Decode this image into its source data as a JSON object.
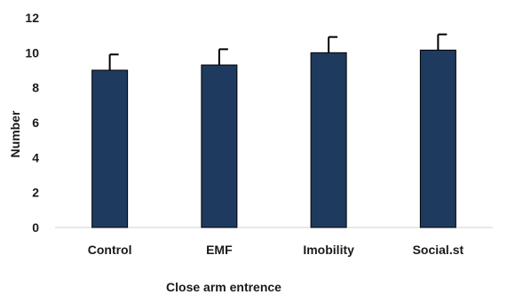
{
  "chart_data": {
    "type": "bar",
    "categories": [
      "Control",
      "EMF",
      "Imobility",
      "Social.st"
    ],
    "values": [
      9.0,
      9.3,
      10.0,
      10.15
    ],
    "errors": [
      0.9,
      0.9,
      0.9,
      0.9
    ],
    "title": "",
    "xlabel": "Close arm entrence",
    "ylabel": "Number",
    "ylim": [
      0,
      12
    ],
    "yticks": [
      "0",
      "2",
      "4",
      "6",
      "8",
      "10",
      "12"
    ],
    "grid": false,
    "legend": "none",
    "bar_color": "#1f3a5f"
  }
}
